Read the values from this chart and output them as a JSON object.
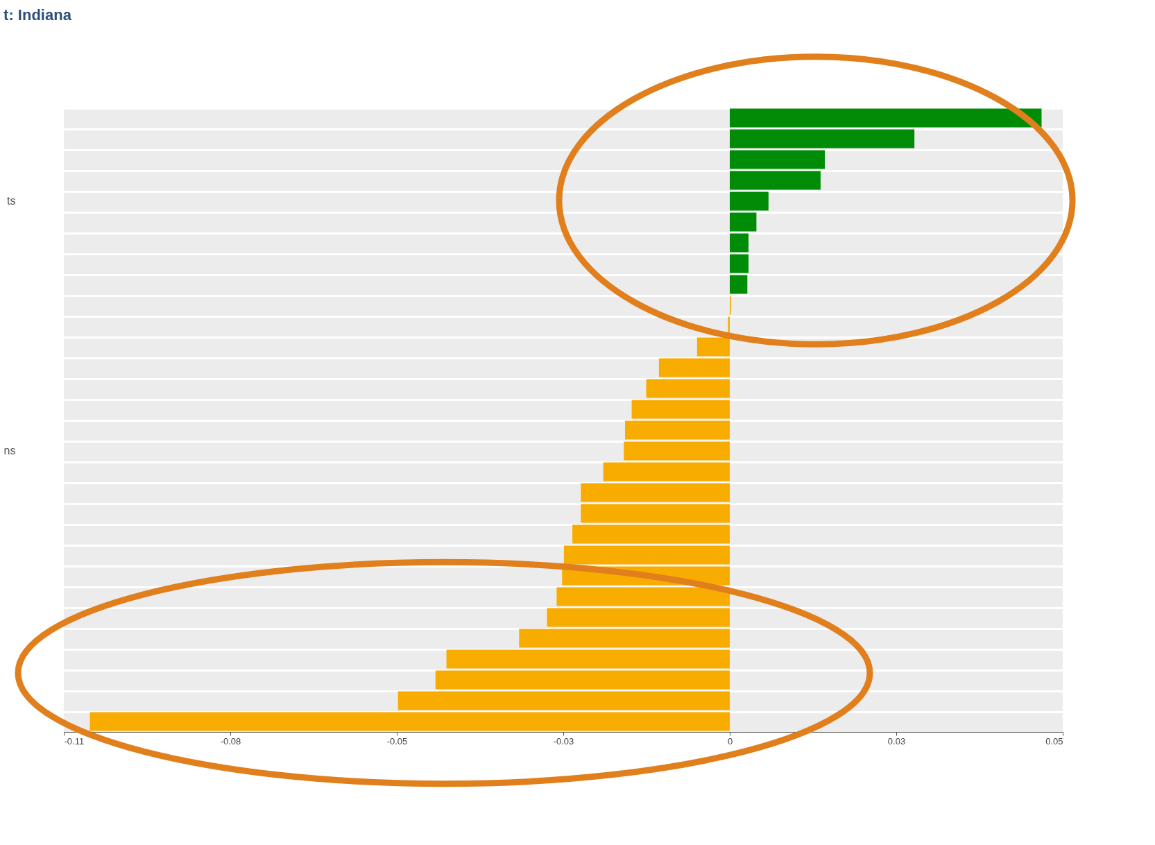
{
  "chart_data": {
    "type": "bar",
    "orientation": "horizontal",
    "title": "t: Indiana",
    "categories": [
      null,
      null,
      null,
      null,
      "ts",
      null,
      null,
      null,
      null,
      null,
      null,
      null,
      null,
      null,
      null,
      null,
      "ns",
      null,
      null,
      null,
      null,
      null,
      null,
      null,
      null,
      null,
      null,
      null,
      null,
      null
    ],
    "values": [
      0.0515,
      0.0305,
      0.0157,
      0.015,
      0.0064,
      0.0044,
      0.0031,
      0.0031,
      0.0029,
      0.0002,
      -0.0003,
      -0.0054,
      -0.0117,
      -0.0138,
      -0.0162,
      -0.0173,
      -0.0175,
      -0.0209,
      -0.0246,
      -0.0246,
      -0.026,
      -0.0274,
      -0.0277,
      -0.0286,
      -0.0302,
      -0.0348,
      -0.0468,
      -0.0486,
      -0.0548,
      -0.1057
    ],
    "colors": [
      "#008c06",
      "#008c06",
      "#008c06",
      "#008c06",
      "#008c06",
      "#008c06",
      "#008c06",
      "#008c06",
      "#008c06",
      "#f9ac00",
      "#f9ac00",
      "#f9ac00",
      "#f9ac00",
      "#f9ac00",
      "#f9ac00",
      "#f9ac00",
      "#f9ac00",
      "#f9ac00",
      "#f9ac00",
      "#f9ac00",
      "#f9ac00",
      "#f9ac00",
      "#f9ac00",
      "#f9ac00",
      "#f9ac00",
      "#f9ac00",
      "#f9ac00",
      "#f9ac00",
      "#f9ac00",
      "#f9ac00"
    ],
    "xlim": [
      -0.11,
      0.055
    ],
    "xticks": [
      -0.11,
      {
        "value": -0.0825,
        "label": "-0.08"
      },
      {
        "value": -0.055,
        "label": "-0.05"
      },
      {
        "value": -0.0275,
        "label": "-0.03"
      },
      0,
      {
        "value": 0.0275,
        "label": "0.03"
      },
      {
        "value": 0.055,
        "label": "0.05"
      }
    ],
    "grid": "y"
  }
}
